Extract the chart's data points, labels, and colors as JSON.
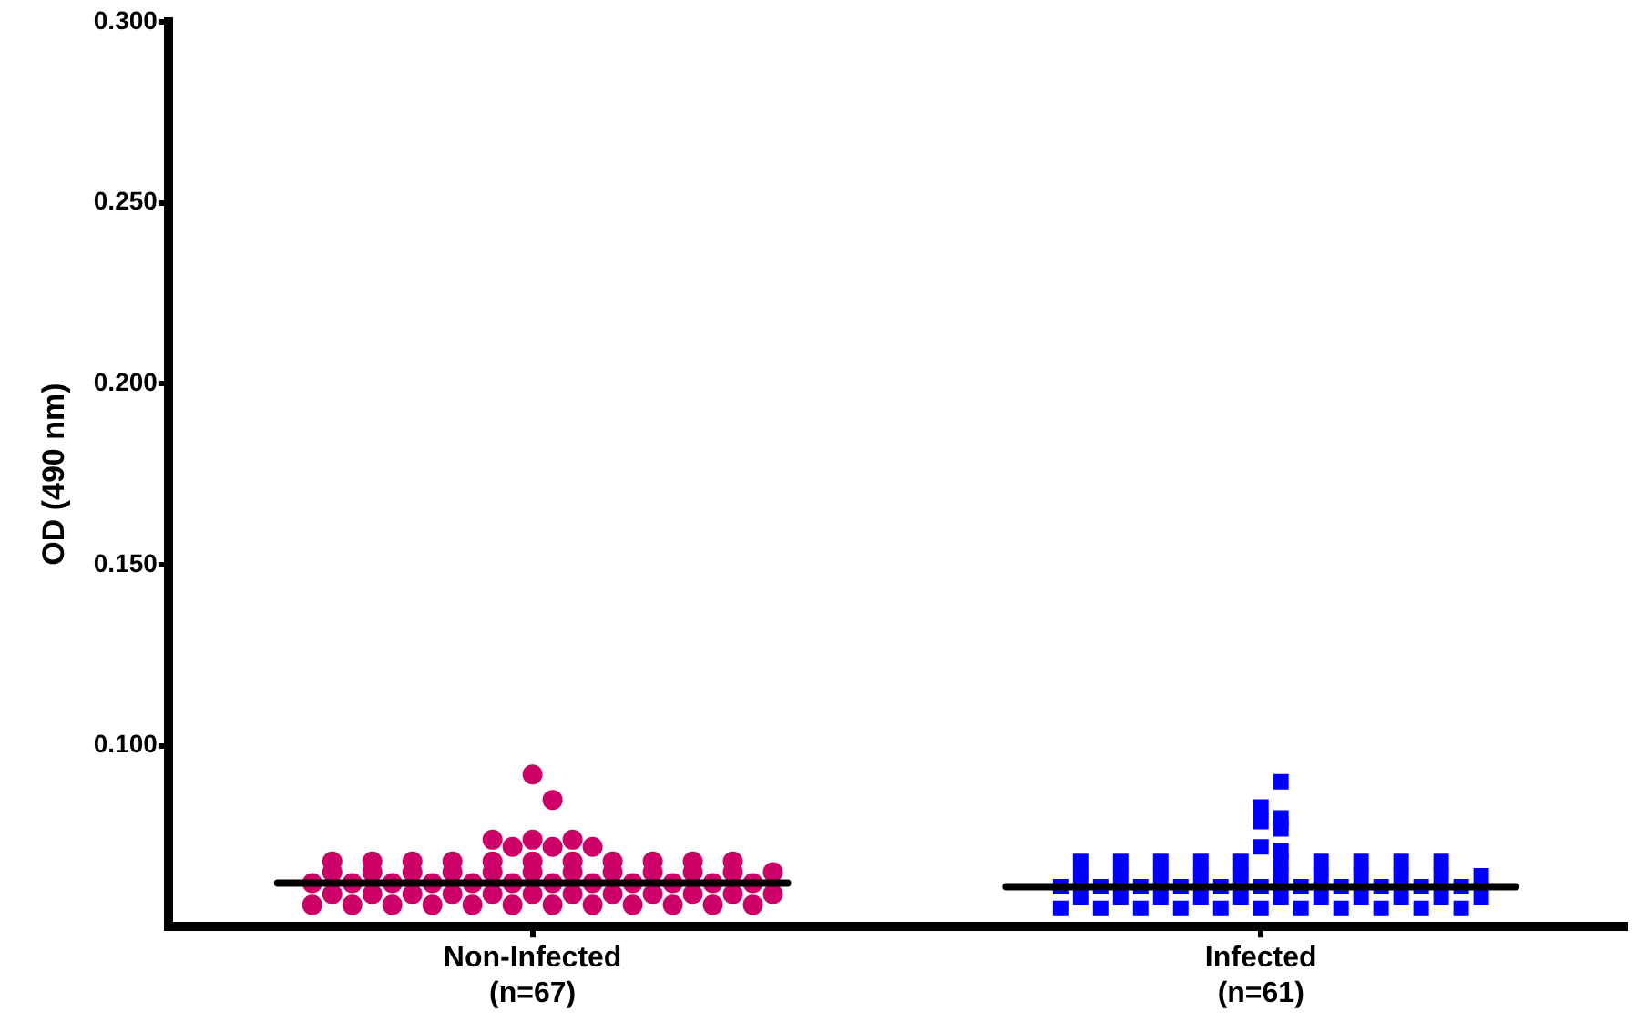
{
  "chart_data": {
    "type": "scatter",
    "ylabel": "OD (490 nm)",
    "categories": [
      "Non-Infected\n(n=67)",
      "Infected\n(n=61)"
    ],
    "ylim": [
      0.05,
      0.3
    ],
    "yticks": [
      {
        "value": 0.1,
        "label": "0.100"
      },
      {
        "value": 0.15,
        "label": "0.150"
      },
      {
        "value": 0.2,
        "label": "0.200"
      },
      {
        "value": 0.25,
        "label": "0.250"
      },
      {
        "value": 0.3,
        "label": "0.300"
      }
    ],
    "grid": false,
    "legend": false,
    "series": [
      {
        "color": "#cc0066",
        "marker": "circle",
        "x": [
          "Non-Infected\n(n=67)",
          "Non-Infected\n(n=67)",
          "Non-Infected\n(n=67)",
          "Non-Infected\n(n=67)",
          "Non-Infected\n(n=67)",
          "Non-Infected\n(n=67)",
          "Non-Infected\n(n=67)",
          "Non-Infected\n(n=67)",
          "Non-Infected\n(n=67)",
          "Non-Infected\n(n=67)",
          "Non-Infected\n(n=67)",
          "Non-Infected\n(n=67)",
          "Non-Infected\n(n=67)",
          "Non-Infected\n(n=67)",
          "Non-Infected\n(n=67)",
          "Non-Infected\n(n=67)",
          "Non-Infected\n(n=67)",
          "Non-Infected\n(n=67)",
          "Non-Infected\n(n=67)",
          "Non-Infected\n(n=67)",
          "Non-Infected\n(n=67)",
          "Non-Infected\n(n=67)",
          "Non-Infected\n(n=67)",
          "Non-Infected\n(n=67)",
          "Non-Infected\n(n=67)",
          "Non-Infected\n(n=67)",
          "Non-Infected\n(n=67)",
          "Non-Infected\n(n=67)",
          "Non-Infected\n(n=67)",
          "Non-Infected\n(n=67)",
          "Non-Infected\n(n=67)",
          "Non-Infected\n(n=67)",
          "Non-Infected\n(n=67)",
          "Non-Infected\n(n=67)",
          "Non-Infected\n(n=67)",
          "Non-Infected\n(n=67)",
          "Non-Infected\n(n=67)",
          "Non-Infected\n(n=67)",
          "Non-Infected\n(n=67)",
          "Non-Infected\n(n=67)",
          "Non-Infected\n(n=67)",
          "Non-Infected\n(n=67)",
          "Non-Infected\n(n=67)",
          "Non-Infected\n(n=67)",
          "Non-Infected\n(n=67)",
          "Non-Infected\n(n=67)",
          "Non-Infected\n(n=67)",
          "Non-Infected\n(n=67)",
          "Non-Infected\n(n=67)",
          "Non-Infected\n(n=67)",
          "Non-Infected\n(n=67)",
          "Non-Infected\n(n=67)",
          "Non-Infected\n(n=67)",
          "Non-Infected\n(n=67)",
          "Non-Infected\n(n=67)",
          "Non-Infected\n(n=67)",
          "Non-Infected\n(n=67)",
          "Non-Infected\n(n=67)",
          "Non-Infected\n(n=67)",
          "Non-Infected\n(n=67)",
          "Non-Infected\n(n=67)",
          "Non-Infected\n(n=67)",
          "Non-Infected\n(n=67)",
          "Non-Infected\n(n=67)",
          "Non-Infected\n(n=67)",
          "Non-Infected\n(n=67)",
          "Non-Infected\n(n=67)"
        ],
        "values": [
          0.092,
          0.085,
          0.074,
          0.074,
          0.074,
          0.072,
          0.072,
          0.072,
          0.068,
          0.068,
          0.068,
          0.068,
          0.068,
          0.068,
          0.068,
          0.068,
          0.068,
          0.068,
          0.068,
          0.065,
          0.065,
          0.065,
          0.065,
          0.065,
          0.065,
          0.065,
          0.065,
          0.065,
          0.065,
          0.065,
          0.065,
          0.062,
          0.062,
          0.062,
          0.062,
          0.062,
          0.062,
          0.062,
          0.062,
          0.062,
          0.062,
          0.062,
          0.062,
          0.059,
          0.059,
          0.059,
          0.059,
          0.059,
          0.059,
          0.059,
          0.059,
          0.059,
          0.059,
          0.059,
          0.059,
          0.056,
          0.056,
          0.056,
          0.056,
          0.056,
          0.056,
          0.056,
          0.056,
          0.056,
          0.056,
          0.056,
          0.056
        ]
      },
      {
        "color": "#0000ff",
        "marker": "square",
        "x": [
          "Infected\n(n=61)",
          "Infected\n(n=61)",
          "Infected\n(n=61)",
          "Infected\n(n=61)",
          "Infected\n(n=61)",
          "Infected\n(n=61)",
          "Infected\n(n=61)",
          "Infected\n(n=61)",
          "Infected\n(n=61)",
          "Infected\n(n=61)",
          "Infected\n(n=61)",
          "Infected\n(n=61)",
          "Infected\n(n=61)",
          "Infected\n(n=61)",
          "Infected\n(n=61)",
          "Infected\n(n=61)",
          "Infected\n(n=61)",
          "Infected\n(n=61)",
          "Infected\n(n=61)",
          "Infected\n(n=61)",
          "Infected\n(n=61)",
          "Infected\n(n=61)",
          "Infected\n(n=61)",
          "Infected\n(n=61)",
          "Infected\n(n=61)",
          "Infected\n(n=61)",
          "Infected\n(n=61)",
          "Infected\n(n=61)",
          "Infected\n(n=61)",
          "Infected\n(n=61)",
          "Infected\n(n=61)",
          "Infected\n(n=61)",
          "Infected\n(n=61)",
          "Infected\n(n=61)",
          "Infected\n(n=61)",
          "Infected\n(n=61)",
          "Infected\n(n=61)",
          "Infected\n(n=61)",
          "Infected\n(n=61)",
          "Infected\n(n=61)",
          "Infected\n(n=61)",
          "Infected\n(n=61)",
          "Infected\n(n=61)",
          "Infected\n(n=61)",
          "Infected\n(n=61)",
          "Infected\n(n=61)",
          "Infected\n(n=61)",
          "Infected\n(n=61)",
          "Infected\n(n=61)",
          "Infected\n(n=61)",
          "Infected\n(n=61)",
          "Infected\n(n=61)",
          "Infected\n(n=61)",
          "Infected\n(n=61)",
          "Infected\n(n=61)",
          "Infected\n(n=61)",
          "Infected\n(n=61)",
          "Infected\n(n=61)",
          "Infected\n(n=61)",
          "Infected\n(n=61)",
          "Infected\n(n=61)"
        ],
        "values": [
          0.09,
          0.083,
          0.08,
          0.079,
          0.077,
          0.072,
          0.071,
          0.068,
          0.068,
          0.068,
          0.068,
          0.068,
          0.068,
          0.068,
          0.068,
          0.068,
          0.068,
          0.064,
          0.064,
          0.064,
          0.064,
          0.064,
          0.064,
          0.064,
          0.064,
          0.064,
          0.064,
          0.064,
          0.061,
          0.061,
          0.061,
          0.061,
          0.061,
          0.061,
          0.061,
          0.061,
          0.061,
          0.061,
          0.061,
          0.058,
          0.058,
          0.058,
          0.058,
          0.058,
          0.058,
          0.058,
          0.058,
          0.058,
          0.058,
          0.058,
          0.055,
          0.055,
          0.055,
          0.055,
          0.055,
          0.055,
          0.055,
          0.055,
          0.055,
          0.055,
          0.055
        ]
      },
      {
        "type": "box",
        "color": "#000000",
        "boxes": [
          {
            "low": 0.062,
            "q1": 0.062,
            "median": 0.062,
            "q3": 0.062,
            "high": 0.062
          },
          {
            "low": 0.061,
            "q1": 0.061,
            "median": 0.061,
            "q3": 0.061,
            "high": 0.061
          }
        ]
      }
    ]
  }
}
